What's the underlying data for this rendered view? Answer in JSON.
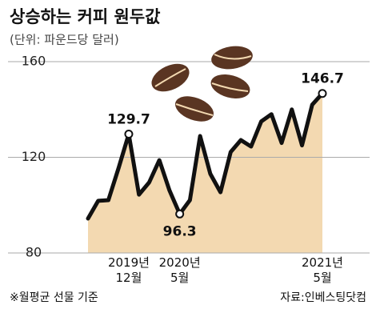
{
  "chart_data": {
    "type": "area",
    "title": "상승하는 커피 원두값",
    "subtitle": "(단위: 파운드당 달러)",
    "categories": [
      null,
      null,
      null,
      null,
      "2019년\n12월",
      null,
      null,
      null,
      null,
      "2020년\n5월",
      null,
      null,
      null,
      null,
      null,
      null,
      null,
      null,
      null,
      null,
      null,
      null,
      null,
      "2021년\n5월"
    ],
    "values": [
      94.4,
      101.8,
      102.1,
      115.5,
      129.7,
      104.4,
      109.5,
      118.8,
      106.1,
      96.3,
      102.1,
      128.9,
      113.1,
      105.4,
      122.2,
      127.2,
      124.5,
      135,
      138,
      126,
      140,
      125,
      142,
      146.7
    ],
    "value_labels": [
      null,
      null,
      null,
      null,
      "129.7",
      null,
      null,
      null,
      null,
      "96.3",
      null,
      null,
      null,
      null,
      null,
      null,
      null,
      null,
      null,
      null,
      null,
      null,
      null,
      "146.7"
    ],
    "color": "#f3d9b1",
    "line_color": "#111111",
    "ylim": [
      80,
      160
    ],
    "yticks": [
      80,
      120,
      160
    ],
    "grid": true,
    "note": "※월평균 선물 기준",
    "source": "자료:인베스팅닷컴"
  }
}
